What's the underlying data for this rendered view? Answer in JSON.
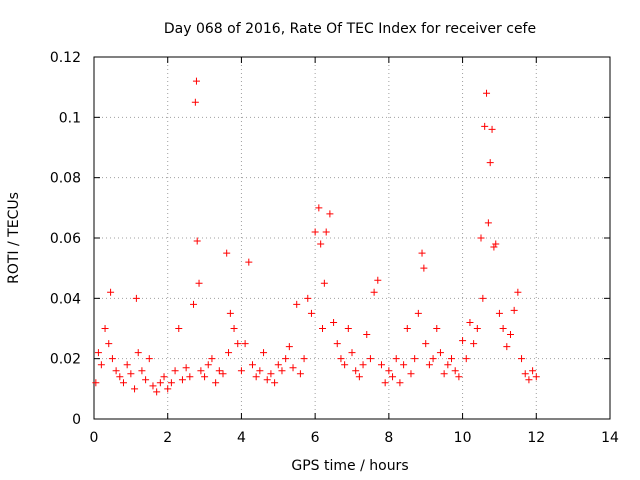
{
  "chart_data": {
    "type": "scatter",
    "title": "Day 068 of 2016, Rate Of TEC Index for receiver cefe",
    "xlabel": "GPS time / hours",
    "ylabel": "ROTI / TECUs",
    "xlim": [
      0,
      14
    ],
    "ylim": [
      0,
      0.12
    ],
    "xticks": [
      0,
      2,
      4,
      6,
      8,
      10,
      12,
      14
    ],
    "yticks": [
      0,
      0.02,
      0.04,
      0.06,
      0.08,
      0.1,
      0.12
    ],
    "xtick_labels": [
      "0",
      "2",
      "4",
      "6",
      "8",
      "10",
      "12",
      "14"
    ],
    "ytick_labels": [
      "0",
      "0.02",
      "0.04",
      "0.06",
      "0.08",
      "0.1",
      "0.12"
    ],
    "grid": true,
    "marker": "+",
    "series": [
      {
        "name": "ROTI",
        "color": "#ff0000",
        "x": [
          0.05,
          0.12,
          0.2,
          0.3,
          0.4,
          0.45,
          0.5,
          0.6,
          0.7,
          0.8,
          0.9,
          1.0,
          1.1,
          1.15,
          1.2,
          1.3,
          1.4,
          1.5,
          1.6,
          1.7,
          1.8,
          1.9,
          2.0,
          2.1,
          2.2,
          2.3,
          2.4,
          2.5,
          2.6,
          2.7,
          2.75,
          2.78,
          2.8,
          2.85,
          2.9,
          3.0,
          3.1,
          3.2,
          3.3,
          3.4,
          3.5,
          3.6,
          3.65,
          3.7,
          3.8,
          3.9,
          4.0,
          4.1,
          4.2,
          4.3,
          4.4,
          4.5,
          4.6,
          4.7,
          4.8,
          4.9,
          5.0,
          5.1,
          5.2,
          5.3,
          5.4,
          5.5,
          5.6,
          5.7,
          5.8,
          5.9,
          6.0,
          6.1,
          6.15,
          6.2,
          6.25,
          6.3,
          6.4,
          6.5,
          6.6,
          6.7,
          6.8,
          6.9,
          7.0,
          7.1,
          7.2,
          7.3,
          7.4,
          7.5,
          7.6,
          7.7,
          7.8,
          7.9,
          8.0,
          8.1,
          8.2,
          8.3,
          8.4,
          8.5,
          8.6,
          8.7,
          8.8,
          8.9,
          8.95,
          9.0,
          9.1,
          9.2,
          9.3,
          9.4,
          9.5,
          9.6,
          9.7,
          9.8,
          9.9,
          10.0,
          10.1,
          10.2,
          10.3,
          10.4,
          10.5,
          10.55,
          10.6,
          10.65,
          10.7,
          10.75,
          10.8,
          10.85,
          10.9,
          11.0,
          11.1,
          11.2,
          11.3,
          11.4,
          11.5,
          11.6,
          11.7,
          11.8,
          11.9,
          12.0
        ],
        "y": [
          0.012,
          0.022,
          0.018,
          0.03,
          0.025,
          0.042,
          0.02,
          0.016,
          0.014,
          0.012,
          0.018,
          0.015,
          0.01,
          0.04,
          0.022,
          0.016,
          0.013,
          0.02,
          0.011,
          0.009,
          0.012,
          0.014,
          0.01,
          0.012,
          0.016,
          0.03,
          0.013,
          0.017,
          0.014,
          0.038,
          0.105,
          0.112,
          0.059,
          0.045,
          0.016,
          0.014,
          0.018,
          0.02,
          0.012,
          0.016,
          0.015,
          0.055,
          0.022,
          0.035,
          0.03,
          0.025,
          0.016,
          0.025,
          0.052,
          0.018,
          0.014,
          0.016,
          0.022,
          0.013,
          0.015,
          0.012,
          0.018,
          0.016,
          0.02,
          0.024,
          0.017,
          0.038,
          0.015,
          0.02,
          0.04,
          0.035,
          0.062,
          0.07,
          0.058,
          0.03,
          0.045,
          0.062,
          0.068,
          0.032,
          0.025,
          0.02,
          0.018,
          0.03,
          0.022,
          0.016,
          0.014,
          0.018,
          0.028,
          0.02,
          0.042,
          0.046,
          0.018,
          0.012,
          0.016,
          0.014,
          0.02,
          0.012,
          0.018,
          0.03,
          0.015,
          0.02,
          0.035,
          0.055,
          0.05,
          0.025,
          0.018,
          0.02,
          0.03,
          0.022,
          0.015,
          0.018,
          0.02,
          0.016,
          0.014,
          0.026,
          0.02,
          0.032,
          0.025,
          0.03,
          0.06,
          0.04,
          0.097,
          0.108,
          0.065,
          0.085,
          0.096,
          0.057,
          0.058,
          0.035,
          0.03,
          0.024,
          0.028,
          0.036,
          0.042,
          0.02,
          0.015,
          0.013,
          0.016,
          0.014
        ]
      }
    ]
  }
}
